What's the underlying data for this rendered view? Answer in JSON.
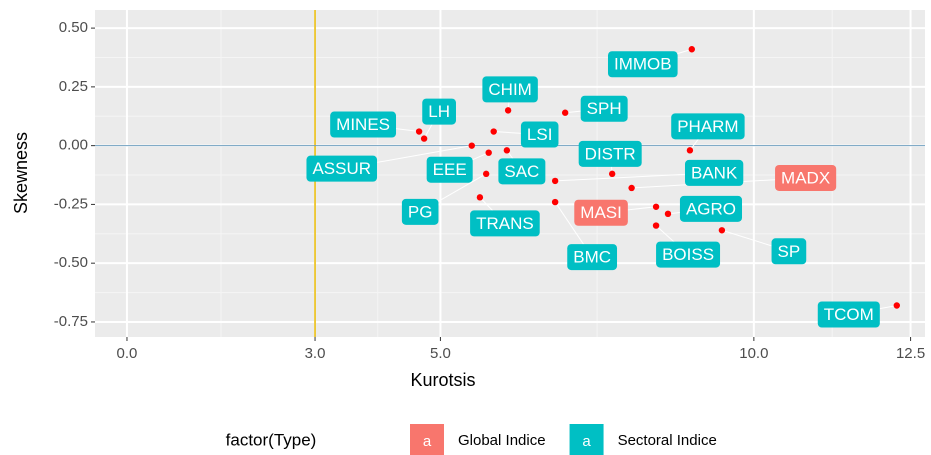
{
  "chart_data": {
    "type": "scatter",
    "xlabel": "Kurotsis",
    "ylabel": "Skewness",
    "xlim": [
      -0.51,
      12.73
    ],
    "ylim": [
      -0.814,
      0.577
    ],
    "xticks": [
      {
        "value": 0,
        "label": "0.0"
      },
      {
        "value": 3,
        "label": "3.0"
      },
      {
        "value": 5,
        "label": "5.0"
      },
      {
        "value": 10,
        "label": "10.0"
      },
      {
        "value": 12.5,
        "label": "12.5"
      }
    ],
    "yticks": [
      {
        "value": 0.5,
        "label": "0.50"
      },
      {
        "value": 0.25,
        "label": "0.25"
      },
      {
        "value": 0,
        "label": "0.00"
      },
      {
        "value": -0.25,
        "label": "-0.25"
      },
      {
        "value": -0.5,
        "label": "-0.50"
      },
      {
        "value": -0.75,
        "label": "-0.75"
      }
    ],
    "grid": true,
    "vline": {
      "value": 3,
      "color": "#e7b800"
    },
    "hline": {
      "value": 0,
      "color": "#6f9fbf"
    },
    "point_color": "#ff0000",
    "legend_title": "factor(Type)",
    "legend_key_text": "a",
    "legend_position": "bottom",
    "series": [
      {
        "name": "Global Indice",
        "color": "#f8766d",
        "labels": [
          "MADX",
          "MASI"
        ],
        "x": [
          8.05,
          8.44
        ],
        "values": [
          -0.18,
          -0.26
        ]
      },
      {
        "name": "Sectoral Indice",
        "color": "#00bfc4",
        "labels": [
          "IMMOB",
          "CHIM",
          "SPH",
          "MINES",
          "LH",
          "LSI",
          "ASSUR",
          "EEE",
          "SAC",
          "PHARM",
          "PG",
          "DISTR",
          "BANK",
          "TRANS",
          "AGRO",
          "BMC",
          "BOISS",
          "SP",
          "TCOM"
        ],
        "x": [
          9.01,
          6.08,
          6.99,
          4.66,
          4.74,
          5.85,
          5.5,
          5.77,
          6.06,
          8.98,
          5.73,
          7.74,
          6.83,
          5.63,
          8.63,
          6.83,
          8.44,
          9.49,
          12.28
        ],
        "values": [
          0.41,
          0.15,
          0.14,
          0.06,
          0.03,
          0.06,
          0.0,
          -0.03,
          -0.02,
          -0.02,
          -0.12,
          -0.12,
          -0.15,
          -0.22,
          -0.29,
          -0.24,
          -0.34,
          -0.36,
          -0.68
        ]
      }
    ]
  }
}
